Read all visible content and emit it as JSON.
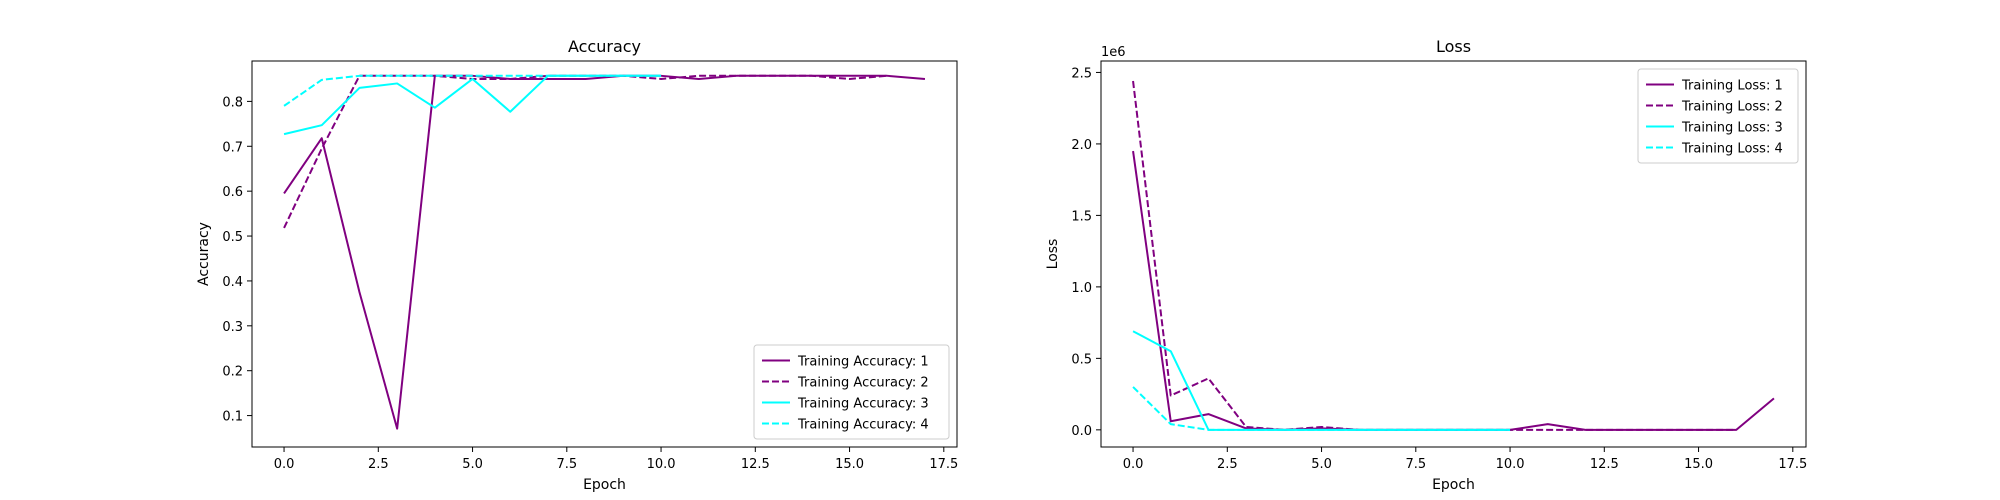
{
  "chart_data": [
    {
      "type": "line",
      "title": "Accuracy",
      "xlabel": "Epoch",
      "ylabel": "Accuracy",
      "xlim": [
        -0.85,
        17.85
      ],
      "ylim": [
        0.03,
        0.89
      ],
      "xticks": [
        0.0,
        2.5,
        5.0,
        7.5,
        10.0,
        12.5,
        15.0,
        17.5
      ],
      "xtick_labels": [
        "0.0",
        "2.5",
        "5.0",
        "7.5",
        "10.0",
        "12.5",
        "15.0",
        "17.5"
      ],
      "yticks": [
        0.1,
        0.2,
        0.3,
        0.4,
        0.5,
        0.6,
        0.7,
        0.8
      ],
      "ytick_labels": [
        "0.1",
        "0.2",
        "0.3",
        "0.4",
        "0.5",
        "0.6",
        "0.7",
        "0.8"
      ],
      "grid": false,
      "legend_position": "lower-right",
      "series": [
        {
          "name": "Training Accuracy: 1",
          "color": "#800080",
          "dash": "solid",
          "x": [
            0,
            1,
            2,
            3,
            4,
            5,
            6,
            7,
            8,
            9,
            10,
            11,
            12,
            13,
            14,
            15,
            16,
            17
          ],
          "y": [
            0.595,
            0.718,
            0.375,
            0.071,
            0.857,
            0.857,
            0.85,
            0.85,
            0.85,
            0.857,
            0.857,
            0.85,
            0.857,
            0.857,
            0.857,
            0.857,
            0.857,
            0.85
          ]
        },
        {
          "name": "Training Accuracy: 2",
          "color": "#800080",
          "dash": "dashed",
          "x": [
            0,
            1,
            2,
            3,
            4,
            5,
            6,
            7,
            8,
            9,
            10,
            11,
            12,
            13,
            14,
            15,
            16
          ],
          "y": [
            0.518,
            0.695,
            0.857,
            0.857,
            0.857,
            0.85,
            0.85,
            0.857,
            0.857,
            0.857,
            0.85,
            0.857,
            0.857,
            0.857,
            0.857,
            0.85,
            0.857
          ]
        },
        {
          "name": "Training Accuracy: 3",
          "color": "#00ffff",
          "dash": "solid",
          "x": [
            0,
            1,
            2,
            3,
            4,
            5,
            6,
            7,
            8,
            9,
            10
          ],
          "y": [
            0.727,
            0.747,
            0.83,
            0.84,
            0.786,
            0.85,
            0.777,
            0.857,
            0.857,
            0.857,
            0.857
          ]
        },
        {
          "name": "Training Accuracy: 4",
          "color": "#00ffff",
          "dash": "dashed",
          "x": [
            0,
            1,
            2,
            3,
            4,
            5,
            6,
            7,
            8,
            9,
            10
          ],
          "y": [
            0.79,
            0.848,
            0.857,
            0.857,
            0.857,
            0.857,
            0.857,
            0.857,
            0.857,
            0.857,
            0.857
          ]
        }
      ]
    },
    {
      "type": "line",
      "title": "Loss",
      "xlabel": "Epoch",
      "ylabel": "Loss",
      "offset_label": "1e6",
      "xlim": [
        -0.85,
        17.85
      ],
      "ylim": [
        -0.12,
        2.58
      ],
      "xticks": [
        0.0,
        2.5,
        5.0,
        7.5,
        10.0,
        12.5,
        15.0,
        17.5
      ],
      "xtick_labels": [
        "0.0",
        "2.5",
        "5.0",
        "7.5",
        "10.0",
        "12.5",
        "15.0",
        "17.5"
      ],
      "yticks": [
        0.0,
        0.5,
        1.0,
        1.5,
        2.0,
        2.5
      ],
      "ytick_labels": [
        "0.0",
        "0.5",
        "1.0",
        "1.5",
        "2.0",
        "2.5"
      ],
      "grid": false,
      "legend_position": "upper-right",
      "series": [
        {
          "name": "Training Loss: 1",
          "color": "#800080",
          "dash": "solid",
          "x": [
            0,
            1,
            2,
            3,
            4,
            5,
            6,
            7,
            8,
            9,
            10,
            11,
            12,
            13,
            14,
            15,
            16,
            17
          ],
          "y": [
            1.95,
            0.06,
            0.11,
            0.01,
            0.0,
            0.01,
            0.0,
            0.0,
            0.0,
            0.0,
            0.0,
            0.04,
            0.0,
            0.0,
            0.0,
            0.0,
            0.0,
            0.22
          ]
        },
        {
          "name": "Training Loss: 2",
          "color": "#800080",
          "dash": "dashed",
          "x": [
            0,
            1,
            2,
            3,
            4,
            5,
            6,
            7,
            8,
            9,
            10,
            11,
            12,
            13,
            14,
            15,
            16
          ],
          "y": [
            2.44,
            0.24,
            0.36,
            0.02,
            0.0,
            0.02,
            0.0,
            0.0,
            0.0,
            0.0,
            0.0,
            0.0,
            0.0,
            0.0,
            0.0,
            0.0,
            0.0
          ]
        },
        {
          "name": "Training Loss: 3",
          "color": "#00ffff",
          "dash": "solid",
          "x": [
            0,
            1,
            2,
            3,
            4,
            5,
            6,
            7,
            8,
            9,
            10
          ],
          "y": [
            0.69,
            0.55,
            0.0,
            0.0,
            0.0,
            0.0,
            0.0,
            0.0,
            0.0,
            0.0,
            0.0
          ]
        },
        {
          "name": "Training Loss: 4",
          "color": "#00ffff",
          "dash": "dashed",
          "x": [
            0,
            1,
            2,
            3,
            4,
            5,
            6,
            7,
            8,
            9,
            10
          ],
          "y": [
            0.3,
            0.04,
            0.0,
            0.0,
            0.0,
            0.0,
            0.0,
            0.0,
            0.0,
            0.0,
            0.0
          ]
        }
      ]
    }
  ]
}
